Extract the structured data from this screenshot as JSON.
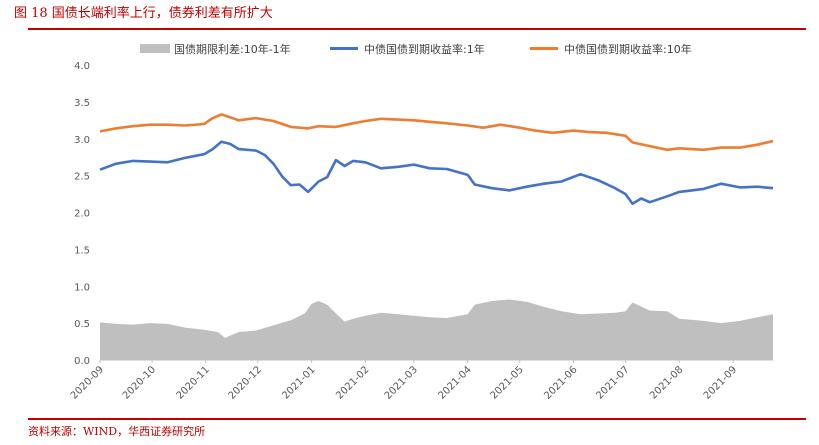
{
  "figure": {
    "title": "图 18   国债长端利率上行，债券利差有所扩大",
    "source": "资料来源：WIND，华西证券研究所"
  },
  "colors": {
    "accent": "#c00000",
    "spread": "#bfbfbf",
    "y1": "#4472c4",
    "y10": "#ed7d31"
  },
  "chart_data": {
    "type": "line",
    "title": "",
    "xlabel": "",
    "ylabel": "",
    "ylim": [
      0.0,
      4.0
    ],
    "yticks": [
      "0.0",
      "0.5",
      "1.0",
      "1.5",
      "2.0",
      "2.5",
      "3.0",
      "3.5",
      "4.0"
    ],
    "grid": false,
    "legend_position": "top",
    "x_tick_labels": [
      "2020-09",
      "2020-10",
      "2020-11",
      "2020-12",
      "2021-01",
      "2021-02",
      "2021-03",
      "2021-04",
      "2021-05",
      "2021-06",
      "2021-07",
      "2021-08",
      "2021-09"
    ],
    "x_start": "2020-09-01",
    "x_end": "2021-09-24",
    "series": [
      {
        "name": "国债期限利差:10年-1年",
        "kind": "area",
        "points": [
          [
            "2020-09-01",
            0.51
          ],
          [
            "2020-09-10",
            0.49
          ],
          [
            "2020-09-20",
            0.48
          ],
          [
            "2020-09-30",
            0.5
          ],
          [
            "2020-10-10",
            0.49
          ],
          [
            "2020-10-20",
            0.44
          ],
          [
            "2020-10-31",
            0.41
          ],
          [
            "2020-11-08",
            0.38
          ],
          [
            "2020-11-12",
            0.3
          ],
          [
            "2020-11-20",
            0.38
          ],
          [
            "2020-11-30",
            0.4
          ],
          [
            "2020-12-10",
            0.47
          ],
          [
            "2020-12-20",
            0.54
          ],
          [
            "2020-12-28",
            0.63
          ],
          [
            "2021-01-01",
            0.76
          ],
          [
            "2021-01-05",
            0.8
          ],
          [
            "2021-01-10",
            0.75
          ],
          [
            "2021-01-15",
            0.63
          ],
          [
            "2021-01-20",
            0.52
          ],
          [
            "2021-01-25",
            0.56
          ],
          [
            "2021-02-01",
            0.6
          ],
          [
            "2021-02-10",
            0.64
          ],
          [
            "2021-02-20",
            0.62
          ],
          [
            "2021-03-01",
            0.6
          ],
          [
            "2021-03-10",
            0.58
          ],
          [
            "2021-03-20",
            0.57
          ],
          [
            "2021-04-01",
            0.62
          ],
          [
            "2021-04-05",
            0.75
          ],
          [
            "2021-04-15",
            0.8
          ],
          [
            "2021-04-25",
            0.82
          ],
          [
            "2021-05-05",
            0.79
          ],
          [
            "2021-05-15",
            0.72
          ],
          [
            "2021-05-25",
            0.66
          ],
          [
            "2021-06-05",
            0.62
          ],
          [
            "2021-06-15",
            0.63
          ],
          [
            "2021-06-25",
            0.64
          ],
          [
            "2021-07-01",
            0.66
          ],
          [
            "2021-07-05",
            0.78
          ],
          [
            "2021-07-15",
            0.67
          ],
          [
            "2021-07-25",
            0.66
          ],
          [
            "2021-08-01",
            0.56
          ],
          [
            "2021-08-15",
            0.53
          ],
          [
            "2021-08-25",
            0.5
          ],
          [
            "2021-09-05",
            0.53
          ],
          [
            "2021-09-15",
            0.58
          ],
          [
            "2021-09-24",
            0.62
          ]
        ]
      },
      {
        "name": "中债国债到期收益率:1年",
        "kind": "line",
        "points": [
          [
            "2020-09-01",
            2.58
          ],
          [
            "2020-09-10",
            2.66
          ],
          [
            "2020-09-20",
            2.7
          ],
          [
            "2020-09-30",
            2.69
          ],
          [
            "2020-10-10",
            2.68
          ],
          [
            "2020-10-20",
            2.74
          ],
          [
            "2020-10-31",
            2.79
          ],
          [
            "2020-11-05",
            2.86
          ],
          [
            "2020-11-10",
            2.96
          ],
          [
            "2020-11-15",
            2.93
          ],
          [
            "2020-11-20",
            2.86
          ],
          [
            "2020-11-30",
            2.84
          ],
          [
            "2020-12-05",
            2.78
          ],
          [
            "2020-12-10",
            2.66
          ],
          [
            "2020-12-15",
            2.49
          ],
          [
            "2020-12-20",
            2.37
          ],
          [
            "2020-12-25",
            2.38
          ],
          [
            "2020-12-30",
            2.28
          ],
          [
            "2021-01-05",
            2.42
          ],
          [
            "2021-01-10",
            2.48
          ],
          [
            "2021-01-15",
            2.71
          ],
          [
            "2021-01-20",
            2.63
          ],
          [
            "2021-01-25",
            2.7
          ],
          [
            "2021-02-01",
            2.68
          ],
          [
            "2021-02-10",
            2.6
          ],
          [
            "2021-02-20",
            2.62
          ],
          [
            "2021-03-01",
            2.65
          ],
          [
            "2021-03-10",
            2.6
          ],
          [
            "2021-03-20",
            2.59
          ],
          [
            "2021-04-01",
            2.51
          ],
          [
            "2021-04-05",
            2.38
          ],
          [
            "2021-04-15",
            2.33
          ],
          [
            "2021-04-25",
            2.3
          ],
          [
            "2021-05-05",
            2.35
          ],
          [
            "2021-05-15",
            2.39
          ],
          [
            "2021-05-25",
            2.42
          ],
          [
            "2021-06-05",
            2.52
          ],
          [
            "2021-06-15",
            2.44
          ],
          [
            "2021-06-25",
            2.33
          ],
          [
            "2021-07-01",
            2.25
          ],
          [
            "2021-07-05",
            2.12
          ],
          [
            "2021-07-10",
            2.19
          ],
          [
            "2021-07-15",
            2.14
          ],
          [
            "2021-07-25",
            2.22
          ],
          [
            "2021-08-01",
            2.28
          ],
          [
            "2021-08-15",
            2.32
          ],
          [
            "2021-08-25",
            2.39
          ],
          [
            "2021-09-05",
            2.34
          ],
          [
            "2021-09-15",
            2.35
          ],
          [
            "2021-09-24",
            2.33
          ]
        ]
      },
      {
        "name": "中债国债到期收益率:10年",
        "kind": "line",
        "points": [
          [
            "2020-09-01",
            3.1
          ],
          [
            "2020-09-10",
            3.14
          ],
          [
            "2020-09-20",
            3.17
          ],
          [
            "2020-09-30",
            3.19
          ],
          [
            "2020-10-10",
            3.19
          ],
          [
            "2020-10-20",
            3.18
          ],
          [
            "2020-10-31",
            3.2
          ],
          [
            "2020-11-05",
            3.28
          ],
          [
            "2020-11-10",
            3.33
          ],
          [
            "2020-11-20",
            3.25
          ],
          [
            "2020-11-30",
            3.28
          ],
          [
            "2020-12-10",
            3.24
          ],
          [
            "2020-12-20",
            3.16
          ],
          [
            "2020-12-30",
            3.14
          ],
          [
            "2021-01-05",
            3.17
          ],
          [
            "2021-01-15",
            3.16
          ],
          [
            "2021-01-25",
            3.21
          ],
          [
            "2021-02-01",
            3.24
          ],
          [
            "2021-02-10",
            3.27
          ],
          [
            "2021-02-20",
            3.26
          ],
          [
            "2021-03-01",
            3.25
          ],
          [
            "2021-03-10",
            3.23
          ],
          [
            "2021-03-20",
            3.21
          ],
          [
            "2021-04-01",
            3.18
          ],
          [
            "2021-04-10",
            3.15
          ],
          [
            "2021-04-20",
            3.19
          ],
          [
            "2021-05-01",
            3.15
          ],
          [
            "2021-05-10",
            3.11
          ],
          [
            "2021-05-20",
            3.08
          ],
          [
            "2021-06-01",
            3.11
          ],
          [
            "2021-06-10",
            3.09
          ],
          [
            "2021-06-20",
            3.08
          ],
          [
            "2021-07-01",
            3.04
          ],
          [
            "2021-07-05",
            2.95
          ],
          [
            "2021-07-15",
            2.9
          ],
          [
            "2021-07-25",
            2.85
          ],
          [
            "2021-08-01",
            2.87
          ],
          [
            "2021-08-15",
            2.85
          ],
          [
            "2021-08-25",
            2.88
          ],
          [
            "2021-09-05",
            2.88
          ],
          [
            "2021-09-15",
            2.92
          ],
          [
            "2021-09-24",
            2.97
          ]
        ]
      }
    ]
  }
}
